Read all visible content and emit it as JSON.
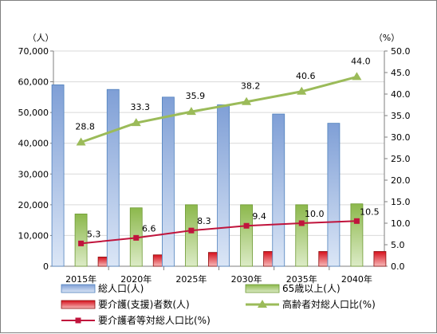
{
  "chart_data": {
    "type": "bar",
    "categories": [
      "2015年",
      "2020年",
      "2025年",
      "2030年",
      "2035年",
      "2040年"
    ],
    "y_left": {
      "unit": "（人）",
      "min": 0,
      "max": 70000,
      "step": 10000,
      "tick_labels": [
        "0",
        "10,000",
        "20,000",
        "30,000",
        "40,000",
        "50,000",
        "60,000",
        "70,000"
      ]
    },
    "y_right": {
      "unit": "（%）",
      "min": 0,
      "max": 50,
      "step": 5,
      "tick_labels": [
        "0.0",
        "5.0",
        "10.0",
        "15.0",
        "20.0",
        "25.0",
        "30.0",
        "35.0",
        "40.0",
        "45.0",
        "50.0"
      ]
    },
    "grid": true,
    "legend_position": "bottom",
    "series": [
      {
        "name": "総人口(人)",
        "type": "bar",
        "axis": "left",
        "color": "#95b3d7",
        "values": [
          59000,
          57500,
          55000,
          52500,
          49500,
          46500
        ]
      },
      {
        "name": "65歳以上(人)",
        "type": "bar",
        "axis": "left",
        "color": "#9bbb59",
        "values": [
          17000,
          19000,
          20000,
          20000,
          20000,
          20300
        ]
      },
      {
        "name": "要介護(支援)者数(人)",
        "type": "bar",
        "axis": "left",
        "color": "#e02020",
        "values": [
          3000,
          3700,
          4500,
          4800,
          4800,
          4800
        ]
      },
      {
        "name": "高齢者対総人口比(%)",
        "type": "line",
        "axis": "right",
        "color": "#9bbb59",
        "values": [
          28.8,
          33.3,
          35.9,
          38.2,
          40.6,
          44.0
        ],
        "labels": [
          "28.8",
          "33.3",
          "35.9",
          "38.2",
          "40.6",
          "44.0"
        ]
      },
      {
        "name": "要介護者等対総人口比(%)",
        "type": "line",
        "axis": "right",
        "color": "#c0143c",
        "values": [
          5.3,
          6.6,
          8.3,
          9.4,
          10.0,
          10.5
        ],
        "labels": [
          "5.3",
          "6.6",
          "8.3",
          "9.4",
          "10.0",
          "10.5"
        ]
      }
    ]
  }
}
